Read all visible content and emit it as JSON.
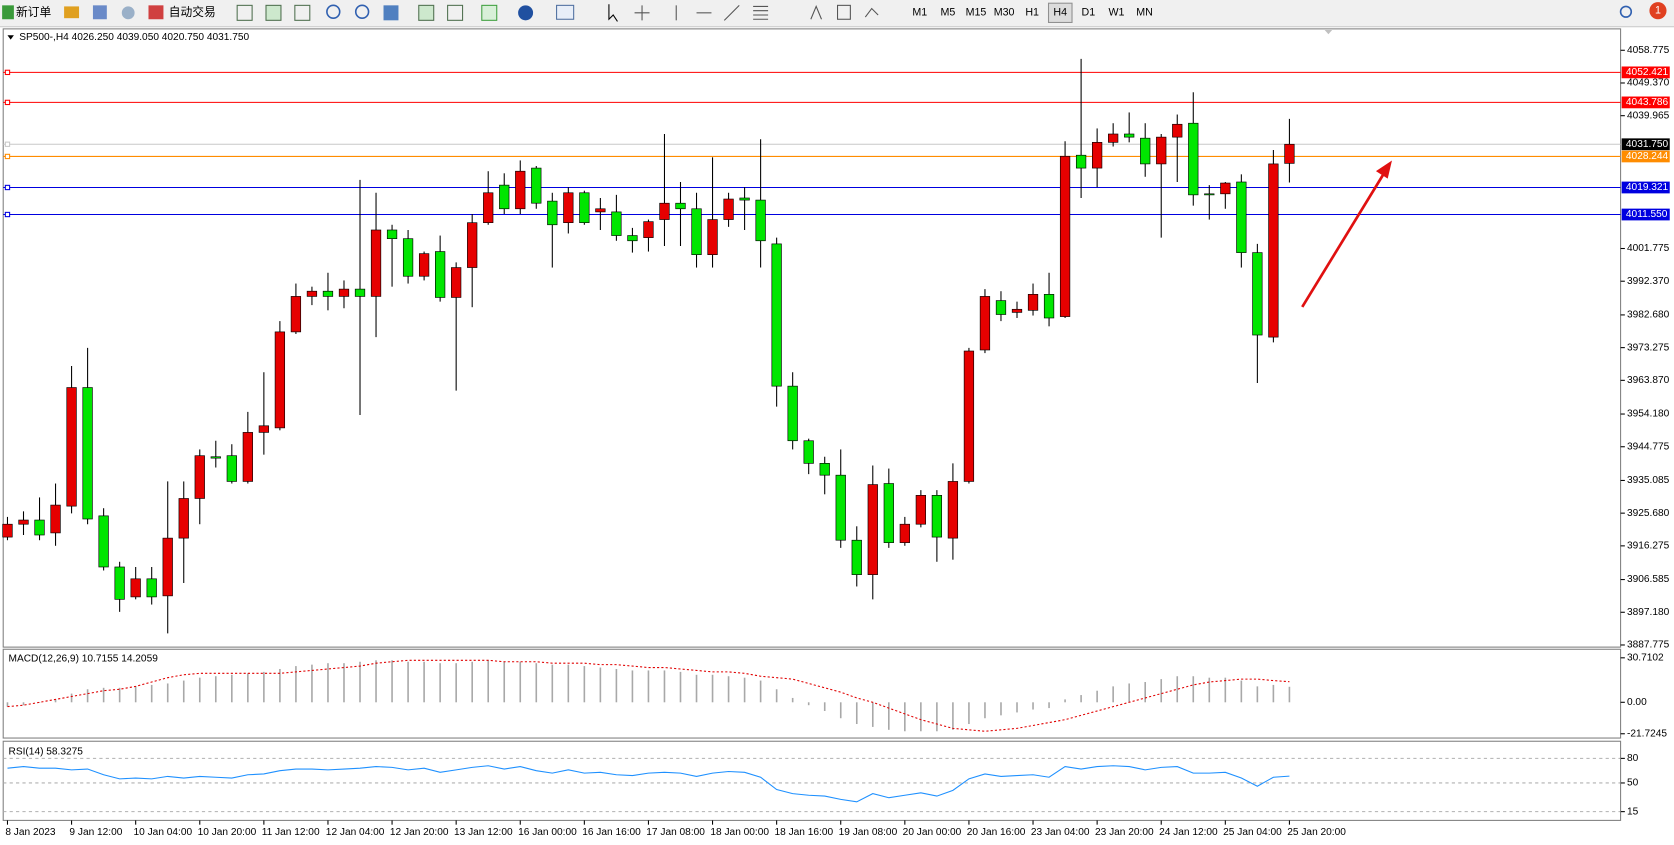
{
  "toolbar": {
    "new_order": "新订单",
    "auto_trade": "自动交易",
    "timeframes": [
      "M1",
      "M5",
      "M15",
      "M30",
      "H1",
      "H4",
      "D1",
      "W1",
      "MN"
    ],
    "active_timeframe": "H4",
    "alert_count": "1"
  },
  "chart_data": [
    {
      "type": "candlestick",
      "title": "SP500-,H4  4026.250 4039.050 4020.750 4031.750",
      "categories": [
        "8 Jan 2023",
        null,
        null,
        null,
        "9 Jan 12:00",
        null,
        null,
        null,
        "10 Jan 04:00",
        null,
        null,
        null,
        "10 Jan 20:00",
        null,
        null,
        null,
        "11 Jan 12:00",
        null,
        null,
        null,
        "12 Jan 04:00",
        null,
        null,
        null,
        "12 Jan 20:00",
        null,
        null,
        null,
        "13 Jan 12:00",
        null,
        null,
        null,
        "16 Jan 00:00",
        null,
        null,
        null,
        "16 Jan 16:00",
        null,
        null,
        null,
        "17 Jan 08:00",
        null,
        null,
        null,
        "18 Jan 00:00",
        null,
        null,
        null,
        "18 Jan 16:00",
        null,
        null,
        null,
        "19 Jan 08:00",
        null,
        null,
        null,
        "20 Jan 00:00",
        null,
        null,
        null,
        "20 Jan 16:00",
        null,
        null,
        null,
        "23 Jan 04:00",
        null,
        null,
        null,
        "23 Jan 20:00",
        null,
        null,
        null,
        "24 Jan 12:00",
        null,
        null,
        null,
        "25 Jan 04:00",
        null,
        null,
        null,
        "25 Jan 20:00"
      ],
      "open": [
        3918.8,
        3922.5,
        3923.7,
        3920.0,
        3927.7,
        3961.8,
        3924.9,
        3910.2,
        3901.6,
        3906.8,
        3901.9,
        3918.5,
        3929.9,
        3941.9,
        3942.2,
        3934.8,
        3948.9,
        3950.2,
        3977.8,
        3988.0,
        3989.5,
        3988.0,
        3990.1,
        3988.0,
        4007.1,
        4004.6,
        3993.8,
        4000.9,
        3987.7,
        3996.3,
        4009.2,
        4020.0,
        4013.2,
        4024.9,
        4015.4,
        4009.2,
        4017.8,
        4012.3,
        4012.3,
        4005.5,
        4004.9,
        4010.1,
        4014.8,
        4013.2,
        4000.0,
        4010.1,
        4016.3,
        4015.7,
        4003.1,
        3962.2,
        3946.5,
        3940.0,
        3936.6,
        3917.9,
        3908.0,
        3934.2,
        3917.2,
        3922.5,
        3930.8,
        3918.5,
        3934.8,
        3972.6,
        3986.8,
        3983.4,
        3984.0,
        3988.6,
        3982.2,
        4028.6,
        4024.9,
        4032.3,
        4034.7,
        4033.5,
        4026.1,
        4033.8,
        4037.8,
        4017.5,
        4017.5,
        4020.9,
        4000.6,
        3976.3,
        4026.25
      ],
      "high": [
        3924.6,
        3926.2,
        3930.2,
        3934.2,
        3968.0,
        3973.2,
        3927.1,
        3911.7,
        3910.2,
        3910.2,
        3934.8,
        3934.8,
        3944.0,
        3946.5,
        3945.5,
        3954.8,
        3966.2,
        3980.9,
        3991.7,
        3990.8,
        3994.8,
        3992.6,
        4021.5,
        4017.8,
        4008.6,
        4007.1,
        4000.9,
        4005.5,
        3997.8,
        4011.7,
        4024.0,
        4023.4,
        4027.1,
        4025.5,
        4017.8,
        4019.4,
        4018.4,
        4016.3,
        4017.2,
        4007.7,
        4010.1,
        4034.7,
        4020.9,
        4017.8,
        4028.0,
        4017.8,
        4019.4,
        4033.2,
        4004.9,
        3966.2,
        3947.1,
        3941.9,
        3944.0,
        3921.9,
        3939.4,
        3938.5,
        3924.6,
        3932.3,
        3932.3,
        3940.0,
        3973.2,
        3990.1,
        3989.5,
        3986.5,
        3991.7,
        3994.8,
        4032.6,
        4056.3,
        4036.3,
        4037.8,
        4040.9,
        4037.8,
        4034.7,
        4040.3,
        4046.7,
        4020.0,
        4020.9,
        4023.1,
        4003.1,
        4030.1,
        4039.05
      ],
      "low": [
        3917.9,
        3919.4,
        3917.9,
        3916.3,
        3925.6,
        3922.5,
        3909.2,
        3897.3,
        3900.9,
        3899.4,
        3891.1,
        3905.6,
        3922.5,
        3938.8,
        3934.2,
        3934.2,
        3942.5,
        3949.5,
        3977.2,
        3985.5,
        3984.0,
        3984.6,
        3953.9,
        3976.3,
        3990.8,
        3991.7,
        3992.6,
        3986.5,
        3960.9,
        3984.9,
        4008.6,
        4011.7,
        4011.7,
        4013.2,
        3996.3,
        4006.1,
        4008.6,
        4007.1,
        4004.0,
        4000.6,
        4000.9,
        4002.5,
        4002.5,
        3996.3,
        3996.3,
        4008.0,
        4007.1,
        3996.3,
        3956.3,
        3944.0,
        3936.9,
        3931.1,
        3915.7,
        3904.6,
        3900.9,
        3915.7,
        3916.3,
        3921.6,
        3911.7,
        3912.3,
        3934.2,
        3971.7,
        3980.9,
        3981.8,
        3982.5,
        3979.4,
        3981.8,
        4016.3,
        4019.4,
        4031.1,
        4032.3,
        4022.4,
        4004.9,
        4020.9,
        4014.1,
        4010.1,
        4013.2,
        3996.3,
        3963.1,
        3974.8,
        4020.75
      ],
      "close": [
        3922.5,
        3923.7,
        3919.4,
        3928.0,
        3961.8,
        3924.0,
        3910.2,
        3900.9,
        3906.8,
        3901.6,
        3918.5,
        3929.9,
        3942.2,
        3941.5,
        3934.8,
        3948.9,
        3950.8,
        3977.8,
        3988.0,
        3989.5,
        3988.0,
        3990.1,
        3988.0,
        4007.1,
        4004.6,
        3993.8,
        4000.3,
        3987.7,
        3996.3,
        4009.2,
        4017.8,
        4013.2,
        4024.0,
        4014.8,
        4008.6,
        4017.8,
        4009.2,
        4013.2,
        4005.5,
        4004.0,
        4009.5,
        4014.8,
        4013.2,
        4000.0,
        4010.1,
        4016.0,
        4015.7,
        4004.0,
        3962.2,
        3946.5,
        3940.0,
        3936.6,
        3917.9,
        3908.0,
        3933.9,
        3917.2,
        3922.5,
        3930.8,
        3918.8,
        3934.8,
        3972.3,
        3988.0,
        3982.8,
        3984.3,
        3988.6,
        3981.8,
        4028.3,
        4024.9,
        4032.3,
        4034.7,
        4033.8,
        4026.1,
        4033.8,
        4037.5,
        4017.2,
        4017.2,
        4020.6,
        4000.6,
        3976.9,
        4026.1,
        4031.75
      ],
      "up_color": "#e60000",
      "down_color": "#00e600",
      "ylim": [
        3887.775,
        4058.775
      ],
      "yticks": [
        4058.775,
        {
          "value": 4049.37,
          "label": "4049.370"
        },
        4039.965,
        4001.775,
        {
          "value": 3992.37,
          "label": "3992.370"
        },
        {
          "value": 3982.68,
          "label": "3982.680"
        },
        3973.275,
        {
          "value": 3963.87,
          "label": "3963.870"
        },
        {
          "value": 3954.18,
          "label": "3954.180"
        },
        3944.775,
        3935.085,
        {
          "value": 3925.68,
          "label": "3925.680"
        },
        3916.275,
        3906.585,
        {
          "value": 3897.18,
          "label": "3897.180"
        },
        3887.775
      ],
      "hlines": [
        {
          "value": 4052.421,
          "label": "4052.421",
          "color": "#ff0000"
        },
        {
          "value": 4043.786,
          "label": "4043.786",
          "color": "#ff0000"
        },
        {
          "value": 4031.75,
          "label": "4031.750",
          "color": "#c8c8c8",
          "label_color": "#000000"
        },
        {
          "value": 4028.244,
          "label": "4028.244",
          "color": "#ff8c00"
        },
        {
          "value": 4019.321,
          "label": "4019.321",
          "color": "#0000e0"
        },
        {
          "value": 4011.55,
          "label": "4011.550",
          "color": "#0000e0"
        }
      ]
    },
    {
      "type": "macd",
      "title": "MACD(12,26,9) 10.7155 14.2059",
      "series": [
        {
          "type": "histogram",
          "color": "#a8a8a8",
          "values": [
            -3,
            -2,
            0,
            2,
            6,
            9,
            10,
            10,
            11,
            12,
            13,
            15,
            17,
            18,
            19,
            20,
            21,
            23,
            25,
            26,
            27,
            27,
            28,
            29,
            29,
            28,
            28,
            27,
            27,
            28,
            29,
            28,
            28,
            27,
            26,
            26,
            25,
            24,
            23,
            22,
            22,
            22,
            21,
            19,
            19,
            18,
            17,
            15,
            9,
            3,
            -2,
            -6,
            -11,
            -15,
            -17,
            -19,
            -20,
            -20,
            -20,
            -19,
            -15,
            -11,
            -9,
            -7,
            -5,
            -4,
            2,
            5,
            8,
            11,
            13,
            14,
            16,
            18,
            18,
            17,
            17,
            15,
            11,
            12,
            10.7155
          ]
        },
        {
          "type": "line",
          "color": "#e00000",
          "dashed": true,
          "values": [
            -3,
            -2,
            0,
            2,
            4,
            6,
            8,
            9,
            11,
            14,
            17,
            19,
            20,
            20,
            20,
            20,
            20,
            20,
            21,
            22,
            23,
            24,
            25,
            27,
            28,
            29,
            29,
            29,
            29,
            29,
            29,
            28,
            28,
            28,
            27,
            27,
            27,
            26,
            26,
            25,
            24,
            24,
            23,
            22,
            21,
            21,
            20,
            18,
            17,
            16,
            13,
            10,
            7,
            3,
            0,
            -4,
            -8,
            -12,
            -15,
            -18,
            -19,
            -20,
            -19,
            -18,
            -16,
            -14,
            -12,
            -9,
            -6,
            -3,
            0,
            3,
            6,
            9,
            12,
            14,
            15,
            16,
            16,
            15,
            14.2059
          ]
        }
      ],
      "ylim": [
        -21.7245,
        30.7102
      ],
      "yticks": [
        30.7102,
        {
          "value": 0,
          "label": "0.00"
        },
        -21.7245
      ]
    },
    {
      "type": "rsi",
      "title": "RSI(14) 58.3275",
      "series": [
        {
          "type": "line",
          "color": "#1e90ff",
          "values": [
            68,
            70,
            68,
            68,
            66,
            67,
            60,
            55,
            56,
            55,
            58,
            56,
            58,
            57,
            56,
            60,
            61,
            65,
            67,
            67,
            66,
            67,
            68,
            70,
            69,
            66,
            68,
            63,
            66,
            69,
            71,
            67,
            70,
            65,
            62,
            66,
            62,
            63,
            60,
            59,
            62,
            63,
            62,
            58,
            62,
            64,
            63,
            57,
            42,
            37,
            35,
            34,
            30,
            27,
            37,
            32,
            35,
            38,
            34,
            41,
            55,
            61,
            58,
            59,
            60,
            57,
            70,
            67,
            70,
            71,
            70,
            66,
            69,
            70,
            62,
            62,
            63,
            56,
            46,
            57,
            58.3275
          ]
        }
      ],
      "ylim": [
        0,
        100
      ],
      "yticks": [
        80,
        50,
        15
      ]
    }
  ]
}
